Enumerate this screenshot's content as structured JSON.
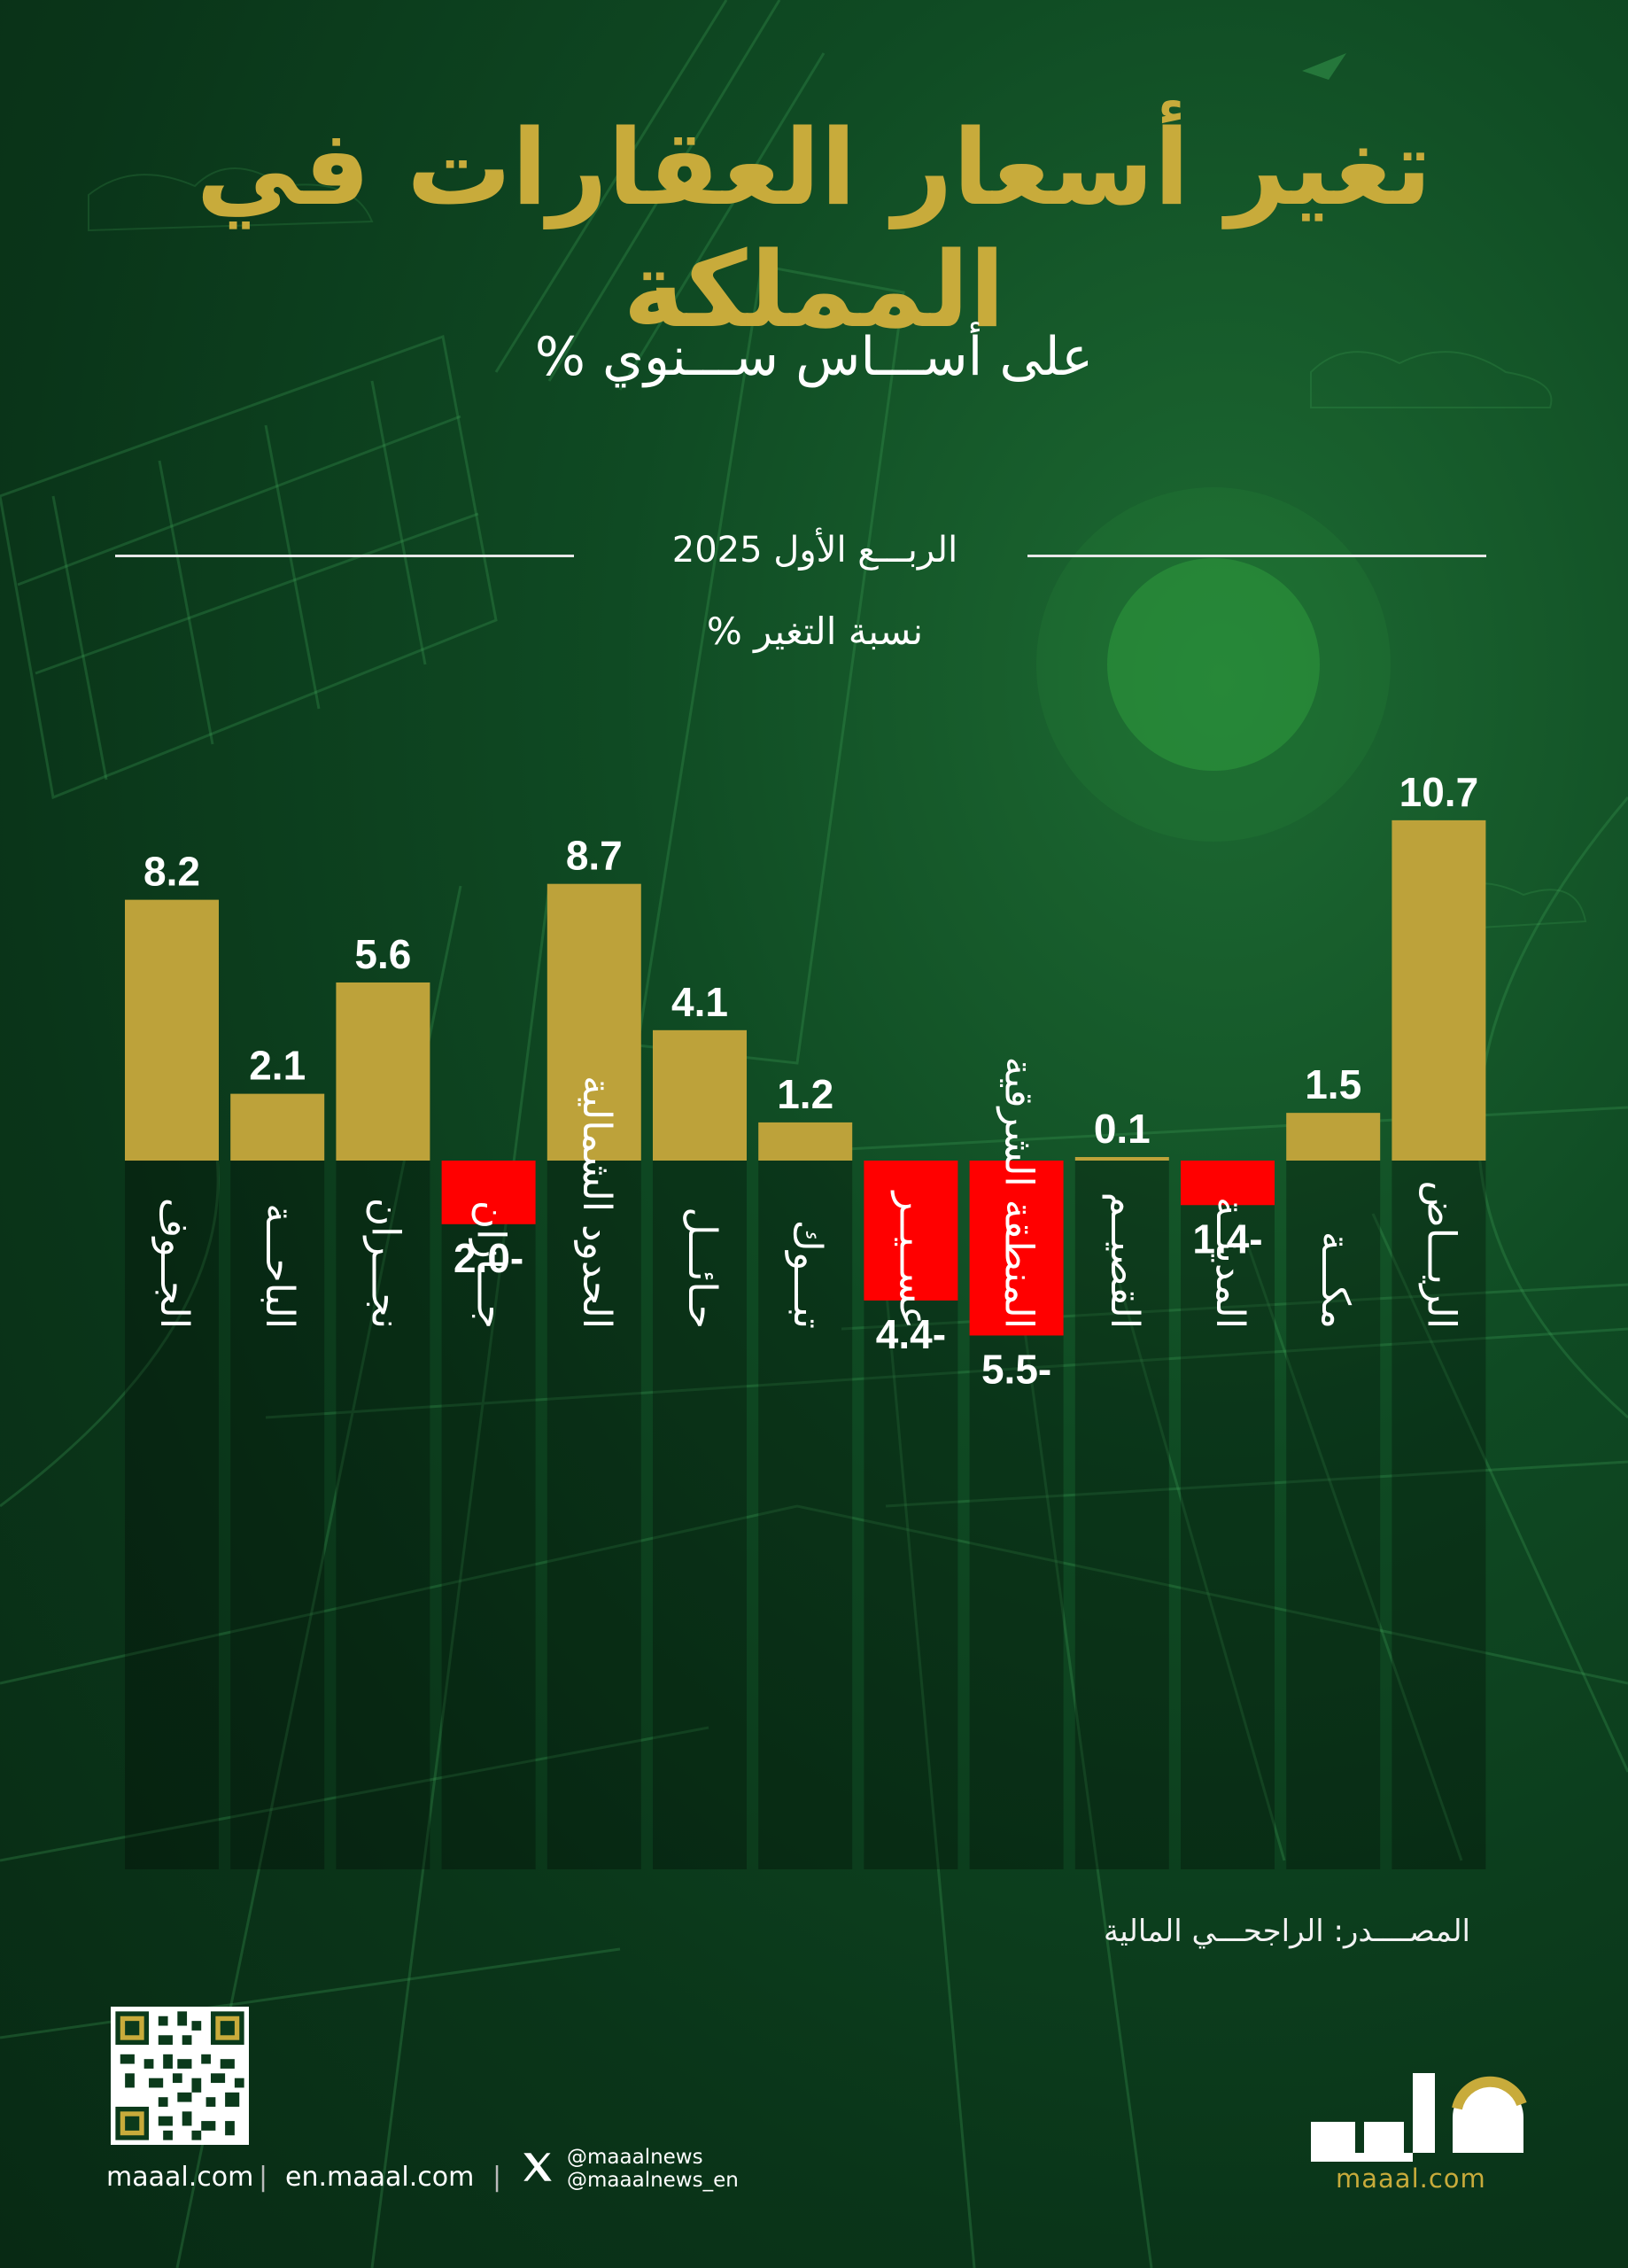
{
  "title": "تغير أسعار العقارات في المملكة",
  "subtitle": "على أســـاس ســـنوي %",
  "period": "الربـــع الأول 2025",
  "unit_label": "نسبة التغير %",
  "source": "المصــــدر: الراجحـــي المالية",
  "footer": {
    "site_ar": "maaal.com",
    "site_en": "en.maaal.com",
    "separator": "|",
    "handle_ar": "@maaalnews",
    "handle_en": "@maaalnews_en",
    "logo_url": "maaal.com"
  },
  "colors": {
    "positive": "#bda23a",
    "negative": "#ff0000",
    "title": "#c8ab3b"
  },
  "chart_data": {
    "type": "bar",
    "title": "تغير أسعار العقارات في المملكة",
    "subtitle": "على أســـاس ســـنوي %",
    "ylabel": "نسبة التغير %",
    "categories": [
      "الجــوف",
      "الباحـــة",
      "نجـــران",
      "جـــازان",
      "الحدود الشمالية",
      "حـائـــل",
      "تبـــوك",
      "عســيــر",
      "المنطقة الشرقية",
      "القصيــم",
      "المدينــة",
      "مكـــة",
      "الريـــاض"
    ],
    "values": [
      8.2,
      2.1,
      5.6,
      -2.0,
      8.7,
      4.1,
      1.2,
      -4.4,
      -5.5,
      0.1,
      -1.4,
      1.5,
      10.7
    ],
    "value_labels": [
      "8.2",
      "2.1",
      "5.6",
      "2.0-",
      "8.7",
      "4.1",
      "1.2",
      "4.4-",
      "5.5-",
      "0.1",
      "1.4-",
      "1.5",
      "10.7"
    ],
    "ylim": [
      -5.5,
      10.7
    ]
  }
}
